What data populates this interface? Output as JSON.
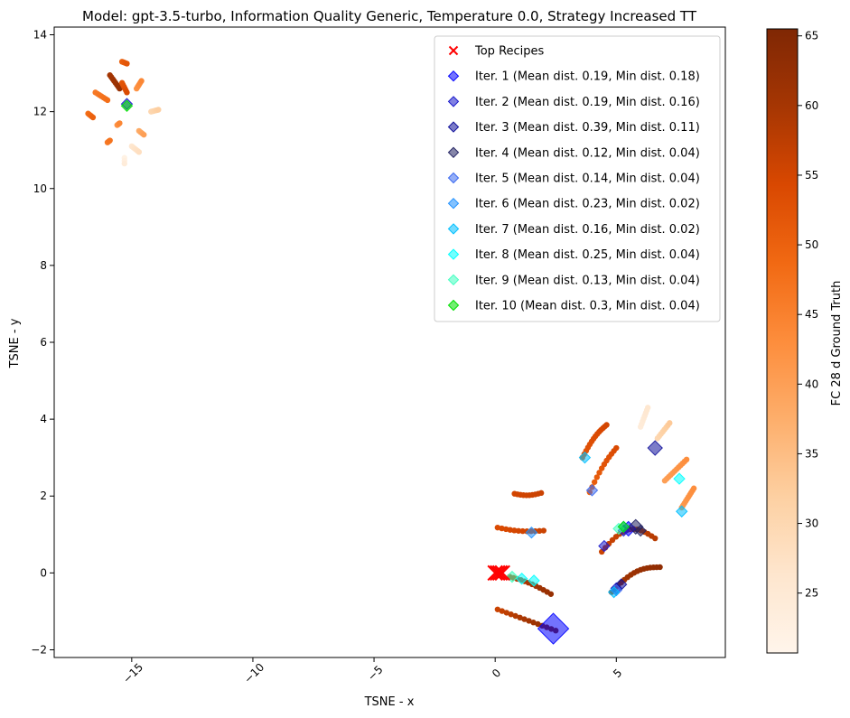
{
  "chart_data": {
    "type": "scatter",
    "title": "Model: gpt-3.5-turbo, Information Quality Generic, Temperature 0.0, Strategy Increased TT",
    "xlabel": "TSNE - x",
    "ylabel": "TSNE - y",
    "xlim": [
      -18.2,
      9.5
    ],
    "ylim": [
      -2.2,
      14.2
    ],
    "xticks": [
      -15,
      -10,
      -5,
      0,
      5
    ],
    "xtick_labels": [
      "−15",
      "−10",
      "−5",
      "0",
      "5"
    ],
    "yticks": [
      -2,
      0,
      2,
      4,
      6,
      8,
      10,
      12,
      14
    ],
    "ytick_labels": [
      "−2",
      "0",
      "2",
      "4",
      "6",
      "8",
      "10",
      "12",
      "14"
    ],
    "grid": false,
    "legend_position": "top-right",
    "colorbar": {
      "label": "FC 28 d Ground Truth",
      "min": 20.7,
      "max": 65.5,
      "ticks": [
        25,
        30,
        35,
        40,
        45,
        50,
        55,
        60,
        65
      ],
      "tick_labels": [
        "25",
        "30",
        "35",
        "40",
        "45",
        "50",
        "55",
        "60",
        "65"
      ],
      "colormap": "Oranges"
    },
    "top_recipes": {
      "name": "Top Recipes",
      "color": "#ff0000",
      "marker": "x",
      "points": [
        [
          0.0,
          0.0
        ],
        [
          0.1,
          0.0
        ],
        [
          0.2,
          0.0
        ],
        [
          0.3,
          0.0
        ]
      ]
    },
    "iterations": [
      {
        "name": "Iter. 1 (Mean dist. 0.19, Min dist. 0.18)",
        "color": "#0000ff",
        "points": [
          [
            2.4,
            -1.45
          ],
          [
            5.5,
            1.15
          ]
        ]
      },
      {
        "name": "Iter. 2 (Mean dist. 0.19, Min dist. 0.16)",
        "color": "#1a1acc",
        "points": [
          [
            5.0,
            -0.4
          ],
          [
            4.5,
            0.7
          ],
          [
            5.3,
            1.1
          ],
          [
            -15.2,
            12.2
          ]
        ]
      },
      {
        "name": "Iter. 3 (Mean dist. 0.39, Min dist. 0.11)",
        "color": "#10109a",
        "points": [
          [
            6.6,
            3.25
          ],
          [
            5.2,
            -0.3
          ]
        ]
      },
      {
        "name": "Iter. 4 (Mean dist. 0.12, Min dist. 0.04)",
        "color": "#202060",
        "points": [
          [
            5.8,
            1.2
          ],
          [
            6.0,
            1.1
          ]
        ]
      },
      {
        "name": "Iter. 5 (Mean dist. 0.14, Min dist. 0.04)",
        "color": "#3d6bf0",
        "points": [
          [
            4.0,
            2.15
          ],
          [
            5.0,
            -0.45
          ]
        ]
      },
      {
        "name": "Iter. 6 (Mean dist. 0.23, Min dist. 0.02)",
        "color": "#1e90ff",
        "points": [
          [
            1.5,
            1.05
          ],
          [
            5.3,
            1.2
          ]
        ]
      },
      {
        "name": "Iter. 7 (Mean dist. 0.16, Min dist. 0.02)",
        "color": "#00bfff",
        "points": [
          [
            3.7,
            3.0
          ],
          [
            7.7,
            1.6
          ],
          [
            4.9,
            -0.5
          ]
        ]
      },
      {
        "name": "Iter. 8 (Mean dist. 0.25, Min dist. 0.04)",
        "color": "#00ffff",
        "points": [
          [
            1.1,
            -0.15
          ],
          [
            1.6,
            -0.2
          ],
          [
            7.6,
            2.45
          ]
        ]
      },
      {
        "name": "Iter. 9 (Mean dist. 0.13, Min dist. 0.04)",
        "color": "#40ffc0",
        "points": [
          [
            0.7,
            -0.1
          ],
          [
            5.1,
            1.15
          ]
        ]
      },
      {
        "name": "Iter. 10 (Mean dist. 0.3, Min dist. 0.04)",
        "color": "#00e000",
        "points": [
          [
            -15.2,
            12.15
          ],
          [
            5.3,
            1.2
          ]
        ]
      }
    ]
  }
}
